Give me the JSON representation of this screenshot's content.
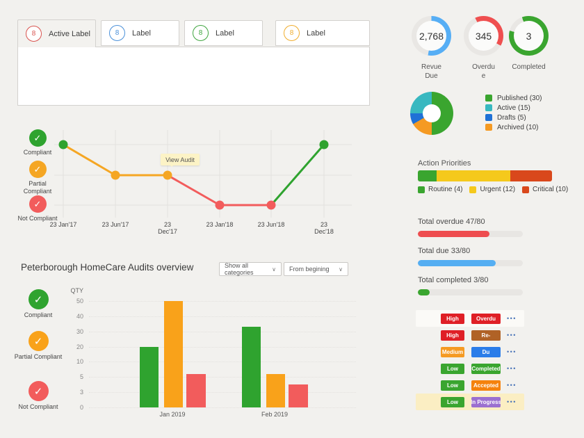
{
  "tabs": {
    "items": [
      {
        "badge": "8",
        "label": "Active Label",
        "color": "#d9534f",
        "active": true
      },
      {
        "badge": "8",
        "label": "Label",
        "color": "#4a90d9",
        "active": false
      },
      {
        "badge": "8",
        "label": "Label",
        "color": "#3fa53f",
        "active": false
      },
      {
        "badge": "8",
        "label": "Label",
        "color": "#f0ad2e",
        "active": false
      }
    ]
  },
  "compliance_timeline": {
    "type": "line",
    "levels": [
      {
        "id": "compliant",
        "label": "Compliant",
        "color": "#2fa32f"
      },
      {
        "id": "partial",
        "label": "Partial Compliant",
        "color": "#f5a623"
      },
      {
        "id": "not",
        "label": "Not Compliant",
        "color": "#f25c5c"
      }
    ],
    "x_labels": [
      [
        "23 Jan'17"
      ],
      [
        "23 Jun'17"
      ],
      [
        "23",
        "Dec'17"
      ],
      [
        "23 Jan'18"
      ],
      [
        "23 Jun'18"
      ],
      [
        "23",
        "Dec'18"
      ]
    ],
    "points": [
      "compliant",
      "partial",
      "partial",
      "not",
      "not",
      "compliant"
    ],
    "point_colors": [
      "#2fa32f",
      "#f5a623",
      "#f5a623",
      "#f25c5c",
      "#f25c5c",
      "#2fa32f"
    ],
    "segment_colors": [
      "#f5a623",
      "#f5a623",
      "#f25c5c",
      "#f25c5c",
      "#2fa32f"
    ],
    "tooltip": {
      "text": "View Audit",
      "point_index": 2
    }
  },
  "audits_overview": {
    "title": "Peterborough HomeCare Audits overview",
    "filters": [
      {
        "label": "Show all categories"
      },
      {
        "label": "From begining"
      }
    ],
    "chart_data": {
      "type": "bar",
      "ylabel": "QTY",
      "yticks": [
        0,
        3,
        5,
        10,
        20,
        30,
        40,
        50
      ],
      "categories": [
        "Jan 2019",
        "Feb 2019"
      ],
      "series": [
        {
          "name": "Compliant",
          "color": "#2fa32f",
          "values": [
            20,
            33
          ]
        },
        {
          "name": "Partial Compliant",
          "color": "#f9a21a",
          "values": [
            50,
            6
          ]
        },
        {
          "name": "Not Compliant",
          "color": "#f25c5c",
          "values": [
            6,
            4
          ]
        }
      ],
      "grid": true,
      "legend_position": "left"
    }
  },
  "ring_stats": [
    {
      "value": "2,768",
      "label": "Revue Due",
      "color": "#56aef5",
      "arc_start_deg": 0,
      "arc_sweep_deg": 190
    },
    {
      "value": "345",
      "label": "Overdue",
      "color": "#ef4f4f",
      "arc_start_deg": -25,
      "arc_sweep_deg": 145
    },
    {
      "value": "3",
      "label": "Completed",
      "color": "#3aa52f",
      "arc_start_deg": -20,
      "arc_sweep_deg": 305
    }
  ],
  "status_donut": {
    "type": "pie",
    "slices": [
      {
        "label": "Published (30)",
        "value": 30,
        "color": "#3aa52f"
      },
      {
        "label": "Active (15)",
        "value": 15,
        "color": "#38b8c0"
      },
      {
        "label": "Drafts (5)",
        "value": 5,
        "color": "#1f71d6"
      },
      {
        "label": "Archived (10)",
        "value": 10,
        "color": "#f59a23"
      }
    ],
    "clockwise_render_order": [
      0,
      3,
      2,
      1
    ]
  },
  "action_priorities": {
    "title": "Action Priorities",
    "segments": [
      {
        "label": "Routine (4)",
        "value": 4,
        "color": "#3aa52f",
        "width_pct": 14
      },
      {
        "label": "Urgent (12)",
        "value": 12,
        "color": "#f5c91c",
        "width_pct": 55
      },
      {
        "label": "Critical (10)",
        "value": 10,
        "color": "#d9481c",
        "width_pct": 31
      }
    ]
  },
  "progress": [
    {
      "label": "Total overdue 47/80",
      "value": 47,
      "total": 80,
      "color": "#ee4d4f",
      "fill_pct": 68
    },
    {
      "label": "Total due 33/80",
      "value": 33,
      "total": 80,
      "color": "#55aef2",
      "fill_pct": 74
    },
    {
      "label": "Total completed 3/80",
      "value": 3,
      "total": 80,
      "color": "#3aa52f",
      "fill_pct": 11
    }
  ],
  "tasks": {
    "menu_icon": "•••",
    "rows": [
      {
        "priority": "High",
        "priority_color": "#df1f26",
        "status": "Overdu",
        "status_color": "#df1f26",
        "row_bg": "#fbfaf7"
      },
      {
        "priority": "High",
        "priority_color": "#df1f26",
        "status": "Re-",
        "status_color": "#b06226",
        "row_bg": ""
      },
      {
        "priority": "Medium",
        "priority_color": "#f59a23",
        "status": "Du",
        "status_color": "#2b7de9",
        "row_bg": ""
      },
      {
        "priority": "Low",
        "priority_color": "#3aa52f",
        "status": "Completed",
        "status_color": "#3aa52f",
        "row_bg": ""
      },
      {
        "priority": "Low",
        "priority_color": "#3aa52f",
        "status": "Accepted",
        "status_color": "#f5820d",
        "row_bg": ""
      },
      {
        "priority": "Low",
        "priority_color": "#3aa52f",
        "status": "In Progress",
        "status_color": "#9b6fd0",
        "row_bg": "#fbeec3"
      }
    ]
  }
}
